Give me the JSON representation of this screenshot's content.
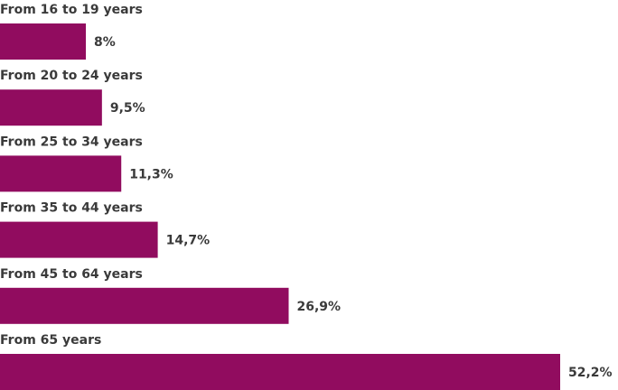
{
  "chart_data": {
    "type": "bar",
    "orientation": "horizontal",
    "categories": [
      "From 16 to 19 years",
      "From 20 to 24 years",
      "From 25 to 34 years",
      "From 35 to 44 years",
      "From 45 to 64 years",
      "From 65 years"
    ],
    "values": [
      8,
      9.5,
      11.3,
      14.7,
      26.9,
      52.2
    ],
    "value_labels": [
      "8%",
      "9,5%",
      "11,3%",
      "14,7%",
      "26,9%",
      "52,2%"
    ],
    "color": "#910c5f"
  }
}
